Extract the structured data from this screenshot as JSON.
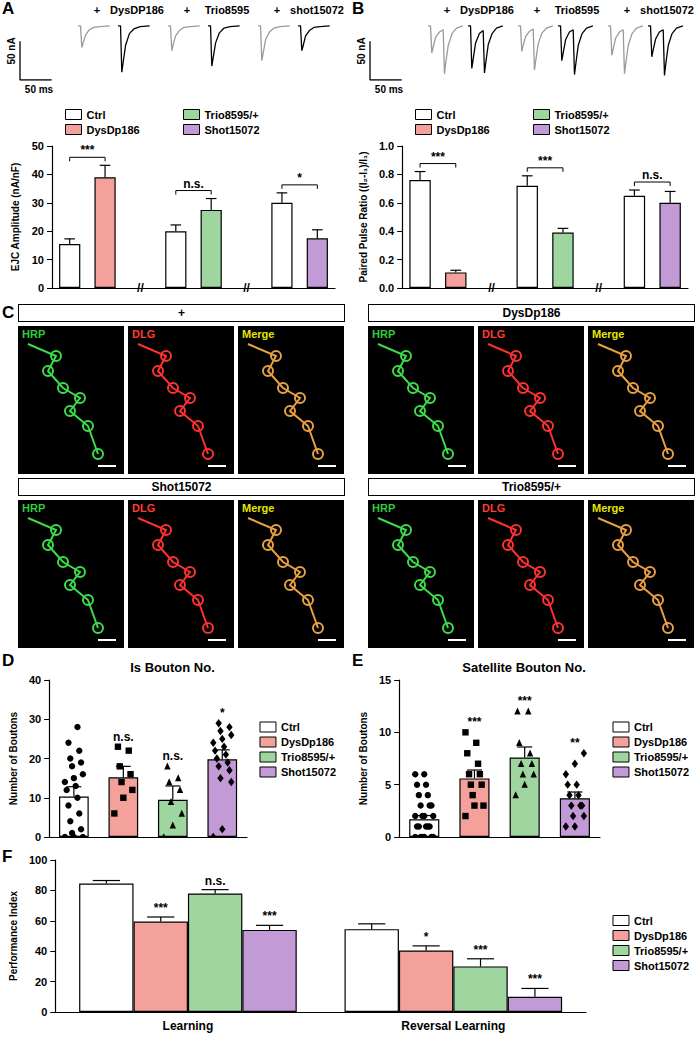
{
  "panel_labels": [
    "A",
    "B",
    "C",
    "D",
    "E",
    "F"
  ],
  "traces": [
    {
      "x": [
        0,
        4,
        6,
        8,
        12,
        18,
        25,
        35,
        50
      ],
      "xlim": [
        0,
        60
      ],
      "ylim": [
        -70,
        5
      ],
      "scale_bar": {
        "x": 50,
        "y": 50,
        "x_label": "50 ms",
        "y_label": "50 nA"
      },
      "pairs": [
        {
          "series": [
            {
              "name": "+",
              "color": "#9a9a9a",
              "values": [
                0,
                0,
                -28,
                -22,
                -12,
                -5,
                -2,
                -1,
                0
              ]
            },
            {
              "name": "DysDP186",
              "color": "#000000",
              "values": [
                0,
                0,
                -60,
                -48,
                -25,
                -10,
                -4,
                -1,
                0
              ]
            }
          ]
        },
        {
          "series": [
            {
              "name": "+",
              "color": "#9a9a9a",
              "values": [
                0,
                0,
                -32,
                -25,
                -13,
                -6,
                -2,
                -1,
                0
              ]
            },
            {
              "name": "Trio8595",
              "color": "#000000",
              "values": [
                0,
                0,
                -52,
                -42,
                -22,
                -9,
                -3,
                -1,
                0
              ]
            }
          ]
        },
        {
          "series": [
            {
              "name": "+",
              "color": "#9a9a9a",
              "values": [
                0,
                0,
                -45,
                -36,
                -18,
                -8,
                -3,
                -1,
                0
              ]
            },
            {
              "name": "shot15072",
              "color": "#000000",
              "values": [
                0,
                0,
                -32,
                -26,
                -13,
                -6,
                -2,
                -1,
                0
              ]
            }
          ]
        }
      ]
    },
    {
      "x": [
        0,
        4,
        6,
        8,
        12,
        18,
        24,
        26,
        28,
        32,
        38,
        45,
        55
      ],
      "xlim": [
        0,
        60
      ],
      "ylim": [
        -70,
        5
      ],
      "scale_bar": {
        "x": 50,
        "y": 50,
        "x_label": "50 ms",
        "y_label": "50 nA"
      },
      "pairs": [
        {
          "series": [
            {
              "name": "+",
              "color": "#9a9a9a",
              "values": [
                0,
                0,
                -35,
                -28,
                -15,
                -8,
                -5,
                -62,
                -48,
                -25,
                -10,
                -3,
                0
              ]
            },
            {
              "name": "DysDP186",
              "color": "#000000",
              "values": [
                0,
                0,
                -55,
                -44,
                -22,
                -10,
                -6,
                -61,
                -48,
                -24,
                -10,
                -3,
                0
              ]
            }
          ]
        },
        {
          "series": [
            {
              "name": "+",
              "color": "#9a9a9a",
              "values": [
                0,
                0,
                -33,
                -26,
                -14,
                -7,
                -4,
                -57,
                -45,
                -23,
                -9,
                -3,
                0
              ]
            },
            {
              "name": "Trio8595",
              "color": "#000000",
              "values": [
                0,
                0,
                -45,
                -36,
                -18,
                -8,
                -5,
                -63,
                -50,
                -25,
                -10,
                -3,
                0
              ]
            }
          ]
        },
        {
          "series": [
            {
              "name": "+",
              "color": "#9a9a9a",
              "values": [
                0,
                0,
                -38,
                -30,
                -16,
                -8,
                -5,
                -62,
                -49,
                -25,
                -10,
                -3,
                0
              ]
            },
            {
              "name": "shot15072",
              "color": "#000000",
              "values": [
                0,
                0,
                -40,
                -32,
                -17,
                -8,
                -5,
                -64,
                -50,
                -25,
                -10,
                -3,
                0
              ]
            }
          ]
        }
      ]
    }
  ],
  "images": {
    "groups": [
      {
        "title": "+"
      },
      {
        "title": "DysDp186"
      },
      {
        "title": "Shot15072"
      },
      {
        "title": "Trio8595/+"
      }
    ],
    "channels": [
      {
        "label": "HRP",
        "color": "#2ecc40"
      },
      {
        "label": "DLG",
        "color": "#ff3b30"
      },
      {
        "label": "Merge",
        "color": "#e6e600"
      }
    ]
  },
  "chart_data": [
    {
      "type": "bar",
      "y_label": "EJC Amplitude (nA/nF)",
      "legend": "top",
      "categories": [
        null,
        null,
        null,
        null,
        null,
        null,
        null,
        null
      ],
      "series": [
        {
          "name": "Ctrl",
          "color": "#ffffff",
          "values": [
            15.5,
            null,
            null,
            20,
            null,
            null,
            30,
            null
          ],
          "errors": [
            1.8,
            null,
            null,
            2.2,
            null,
            null,
            3.5,
            null
          ]
        },
        {
          "name": "DysDp186",
          "color": "#f4a19c",
          "values": [
            null,
            39,
            null,
            null,
            null,
            null,
            null,
            null
          ],
          "errors": [
            null,
            4.2,
            null,
            null,
            null,
            null,
            null,
            null
          ]
        },
        {
          "name": "Trio8595/+",
          "color": "#9fd6a0",
          "values": [
            null,
            null,
            null,
            null,
            27.5,
            null,
            null,
            null
          ],
          "errors": [
            null,
            null,
            null,
            null,
            4,
            null,
            null,
            null
          ]
        },
        {
          "name": "Shot15072",
          "color": "#c29ad6",
          "values": [
            null,
            null,
            null,
            null,
            null,
            null,
            null,
            17.5
          ],
          "errors": [
            null,
            null,
            null,
            null,
            null,
            null,
            null,
            3
          ]
        }
      ],
      "ylim": [
        0,
        50
      ],
      "yticks": [
        0,
        10,
        20,
        30,
        40,
        50
      ],
      "annotations": [
        {
          "text": "***",
          "from": 0,
          "to": 1
        },
        {
          "text": "n.s.",
          "from": 3,
          "to": 4
        },
        {
          "text": "*",
          "from": 6,
          "to": 7
        },
        {
          "text": "//",
          "at": 2
        },
        {
          "text": "//",
          "at": 5
        }
      ]
    },
    {
      "type": "bar",
      "y_label": "Paired Pulse Ratio ((I₂-I₁)/I₁)",
      "legend": "top",
      "categories": [
        null,
        null,
        null,
        null,
        null,
        null,
        null,
        null
      ],
      "series": [
        {
          "name": "Ctrl",
          "color": "#ffffff",
          "values": [
            0.76,
            null,
            null,
            0.72,
            null,
            null,
            0.65,
            null
          ],
          "errors": [
            0.06,
            null,
            null,
            0.07,
            null,
            null,
            0.04,
            null
          ]
        },
        {
          "name": "DysDp186",
          "color": "#f4a19c",
          "values": [
            null,
            0.11,
            null,
            null,
            null,
            null,
            null,
            null
          ],
          "errors": [
            null,
            0.015,
            null,
            null,
            null,
            null,
            null,
            null
          ]
        },
        {
          "name": "Trio8595/+",
          "color": "#9fd6a0",
          "values": [
            null,
            null,
            null,
            null,
            0.39,
            null,
            null,
            null
          ],
          "errors": [
            null,
            null,
            null,
            null,
            0.03,
            null,
            null,
            null
          ]
        },
        {
          "name": "Shot15072",
          "color": "#c29ad6",
          "values": [
            null,
            null,
            null,
            null,
            null,
            null,
            null,
            0.6
          ],
          "errors": [
            null,
            null,
            null,
            null,
            null,
            null,
            null,
            0.08
          ]
        }
      ],
      "ylim": [
        0,
        1
      ],
      "yticks": [
        {
          "value": 0,
          "label": "0.0"
        },
        0.2,
        0.4,
        0.6,
        0.8,
        {
          "value": 1,
          "label": "1.0"
        }
      ],
      "annotations": [
        {
          "text": "***",
          "from": 0,
          "to": 1
        },
        {
          "text": "***",
          "from": 3,
          "to": 4
        },
        {
          "text": "n.s.",
          "from": 6,
          "to": 7
        },
        {
          "text": "//",
          "at": 2
        },
        {
          "text": "//",
          "at": 5
        }
      ]
    },
    {
      "type": "bar",
      "title": "Is Bouton No.",
      "y_label": "Number of Boutons",
      "legend": "right",
      "categories": [
        null,
        null,
        null,
        null
      ],
      "series": [
        {
          "name": "Ctrl",
          "color": "#ffffff",
          "marker": "circle",
          "values": [
            10.3,
            null,
            null,
            null
          ],
          "errors": [
            2.5,
            null,
            null,
            null
          ],
          "points": [
            0,
            0,
            0,
            1,
            2,
            4,
            6,
            8,
            10,
            12,
            13,
            14,
            15,
            16,
            18,
            19,
            20,
            22,
            24,
            28
          ]
        },
        {
          "name": "DysDp186",
          "color": "#f4a19c",
          "marker": "square",
          "values": [
            null,
            15.2,
            null,
            null
          ],
          "errors": [
            null,
            2.8,
            null,
            null
          ],
          "points": [
            6,
            10,
            12,
            14,
            16,
            18,
            22,
            23
          ]
        },
        {
          "name": "Trio8595/+",
          "color": "#9fd6a0",
          "marker": "triangle",
          "values": [
            null,
            null,
            9.5,
            null
          ],
          "errors": [
            null,
            null,
            3.5,
            null
          ],
          "points": [
            0,
            3,
            6,
            9,
            12,
            14,
            15,
            18
          ]
        },
        {
          "name": "Shot15072",
          "color": "#c29ad6",
          "marker": "diamond",
          "values": [
            null,
            null,
            null,
            19.8
          ],
          "errors": [
            null,
            null,
            null,
            2.4
          ],
          "points": [
            0,
            2,
            14,
            15,
            17,
            18,
            19,
            20,
            21,
            22,
            23,
            24,
            25,
            26,
            27,
            28,
            29
          ]
        }
      ],
      "ylim": [
        0,
        40
      ],
      "yticks": [
        0,
        10,
        20,
        30,
        40
      ],
      "annotations": [
        {
          "text": "n.s.",
          "at": 1
        },
        {
          "text": "n.s.",
          "at": 2
        },
        {
          "text": "*",
          "at": 3
        }
      ]
    },
    {
      "type": "bar",
      "title": "Satellite Bouton No.",
      "y_label": "Number of Boutons",
      "legend": "right",
      "categories": [
        null,
        null,
        null,
        null
      ],
      "series": [
        {
          "name": "Ctrl",
          "color": "#ffffff",
          "marker": "circle",
          "values": [
            1.7,
            null,
            null,
            null
          ],
          "errors": [
            0.35,
            null,
            null,
            null
          ],
          "points": [
            0,
            0,
            0,
            0,
            0,
            0,
            1,
            1,
            1,
            1,
            1,
            2,
            2,
            2,
            2,
            3,
            3,
            3,
            4,
            4,
            5,
            5,
            6,
            6
          ]
        },
        {
          "name": "DysDp186",
          "color": "#f4a19c",
          "marker": "square",
          "values": [
            null,
            5.6,
            null,
            null
          ],
          "errors": [
            null,
            0.8,
            null,
            null
          ],
          "points": [
            2,
            3,
            3,
            4,
            5,
            5,
            6,
            6,
            7,
            8,
            9,
            10
          ]
        },
        {
          "name": "Trio8595/+",
          "color": "#9fd6a0",
          "marker": "triangle",
          "values": [
            null,
            null,
            7.6,
            null
          ],
          "errors": [
            null,
            null,
            1,
            null
          ],
          "points": [
            4,
            5,
            6,
            6,
            7,
            7,
            8,
            9,
            12,
            12
          ]
        },
        {
          "name": "Shot15072",
          "color": "#c29ad6",
          "marker": "diamond",
          "values": [
            null,
            null,
            null,
            3.7
          ],
          "errors": [
            null,
            null,
            null,
            0.6
          ],
          "points": [
            1,
            1,
            2,
            2,
            3,
            3,
            3,
            4,
            4,
            5,
            5,
            6,
            7,
            8
          ]
        }
      ],
      "ylim": [
        0,
        15
      ],
      "yticks": [
        0,
        5,
        10,
        15
      ],
      "annotations": [
        {
          "text": "***",
          "at": 1
        },
        {
          "text": "***",
          "at": 2
        },
        {
          "text": "**",
          "at": 3
        }
      ]
    },
    {
      "type": "bar",
      "y_label": "Performance Index",
      "legend": "right",
      "categories": [
        "Learning",
        "Reversal Learning"
      ],
      "series": [
        {
          "name": "Ctrl",
          "color": "#ffffff",
          "values": [
            84.5,
            54.5
          ],
          "errors": [
            2,
            3.5
          ]
        },
        {
          "name": "DysDp186",
          "color": "#f4a19c",
          "values": [
            59.5,
            40.5
          ],
          "errors": [
            3,
            3
          ]
        },
        {
          "name": "Trio8595/+",
          "color": "#9fd6a0",
          "values": [
            78,
            30
          ],
          "errors": [
            2.5,
            5
          ]
        },
        {
          "name": "Shot15072",
          "color": "#c29ad6",
          "values": [
            54,
            10
          ],
          "errors": [
            3,
            5.5
          ]
        }
      ],
      "ylim": [
        0,
        100
      ],
      "yticks": [
        0,
        20,
        40,
        60,
        80,
        100
      ],
      "annotations": [
        {
          "text": "***",
          "category": 0,
          "series": 1
        },
        {
          "text": "n.s.",
          "category": 0,
          "series": 2
        },
        {
          "text": "***",
          "category": 0,
          "series": 3
        },
        {
          "text": "*",
          "category": 1,
          "series": 1
        },
        {
          "text": "***",
          "category": 1,
          "series": 2
        },
        {
          "text": "***",
          "category": 1,
          "series": 3
        }
      ]
    }
  ]
}
